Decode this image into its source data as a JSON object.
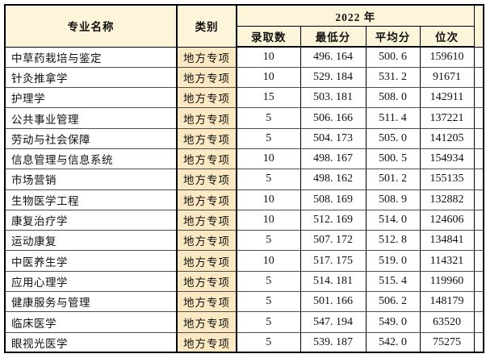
{
  "colors": {
    "header_bg": "#fdf5da",
    "category_cell_bg": "#fae9c2",
    "grid_border": "#000000",
    "row_separator": "#4d4d4d",
    "page_bg": "#ffffff"
  },
  "table": {
    "header": {
      "major": "专业名称",
      "category": "类别",
      "year_group": "2022 年",
      "sub_count": "录取数",
      "sub_min": "最低分",
      "sub_avg": "平均分",
      "sub_rank": "位次"
    },
    "rows": [
      {
        "major": "中草药栽培与鉴定",
        "category": "地方专项",
        "count": "10",
        "min": "496. 164",
        "avg": "500. 6",
        "rank": "159610"
      },
      {
        "major": "针灸推拿学",
        "category": "地方专项",
        "count": "10",
        "min": "529. 184",
        "avg": "531. 2",
        "rank": "91671"
      },
      {
        "major": "护理学",
        "category": "地方专项",
        "count": "15",
        "min": "503. 181",
        "avg": "508. 0",
        "rank": "142911"
      },
      {
        "major": "公共事业管理",
        "category": "地方专项",
        "count": "5",
        "min": "506. 166",
        "avg": "511. 4",
        "rank": "137221"
      },
      {
        "major": "劳动与社会保障",
        "category": "地方专项",
        "count": "5",
        "min": "504. 173",
        "avg": "505. 0",
        "rank": "141205"
      },
      {
        "major": "信息管理与信息系统",
        "category": "地方专项",
        "count": "10",
        "min": "498. 167",
        "avg": "500. 5",
        "rank": "154934"
      },
      {
        "major": "市场营销",
        "category": "地方专项",
        "count": "5",
        "min": "498. 162",
        "avg": "501. 2",
        "rank": "155135"
      },
      {
        "major": "生物医学工程",
        "category": "地方专项",
        "count": "10",
        "min": "508. 169",
        "avg": "508. 9",
        "rank": "132882"
      },
      {
        "major": "康复治疗学",
        "category": "地方专项",
        "count": "10",
        "min": "512. 169",
        "avg": "514. 0",
        "rank": "124606"
      },
      {
        "major": "运动康复",
        "category": "地方专项",
        "count": "5",
        "min": "507. 172",
        "avg": "512. 8",
        "rank": "134841"
      },
      {
        "major": "中医养生学",
        "category": "地方专项",
        "count": "10",
        "min": "517. 175",
        "avg": "519. 0",
        "rank": "114321"
      },
      {
        "major": "应用心理学",
        "category": "地方专项",
        "count": "5",
        "min": "514. 181",
        "avg": "515. 4",
        "rank": "119960"
      },
      {
        "major": "健康服务与管理",
        "category": "地方专项",
        "count": "5",
        "min": "501. 166",
        "avg": "506. 2",
        "rank": "148179"
      },
      {
        "major": "临床医学",
        "category": "地方专项",
        "count": "5",
        "min": "547. 194",
        "avg": "549. 0",
        "rank": "63520"
      },
      {
        "major": "眼视光医学",
        "category": "地方专项",
        "count": "5",
        "min": "539. 187",
        "avg": "542. 0",
        "rank": "75275"
      }
    ]
  }
}
